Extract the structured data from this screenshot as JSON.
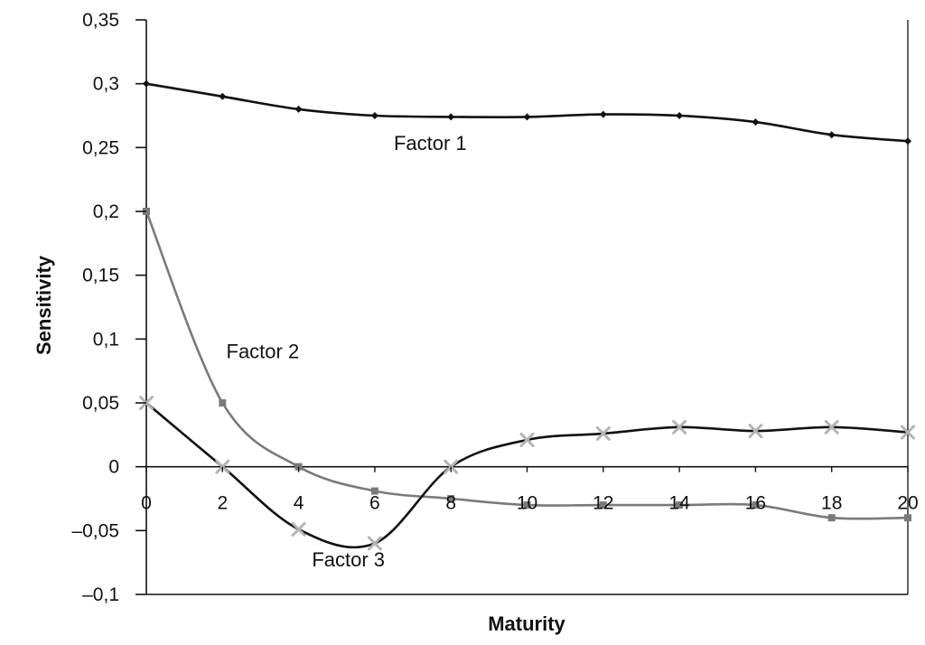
{
  "chart_data": {
    "type": "line",
    "title": "",
    "xlabel": "Maturity",
    "ylabel": "Sensitivity",
    "xlim": [
      0,
      20
    ],
    "ylim": [
      -0.1,
      0.35
    ],
    "x_ticks": [
      0,
      2,
      4,
      6,
      8,
      10,
      12,
      14,
      16,
      18,
      20
    ],
    "x_tick_labels": [
      "0",
      "2",
      "4",
      "6",
      "8",
      "10",
      "12",
      "14",
      "16",
      "18",
      "20"
    ],
    "y_ticks": [
      -0.1,
      -0.05,
      0,
      0.05,
      0.1,
      0.15,
      0.2,
      0.25,
      0.3,
      0.35
    ],
    "y_tick_labels": [
      "–0,1",
      "–0,05",
      "0",
      "0,05",
      "0,1",
      "0,15",
      "0,2",
      "0,25",
      "0,3",
      "0,35"
    ],
    "grid": false,
    "legend": "none",
    "x": [
      0,
      2,
      4,
      6,
      8,
      10,
      12,
      14,
      16,
      18,
      20
    ],
    "series": [
      {
        "name": "Factor 1",
        "marker": "diamond",
        "color": "#111111",
        "values": [
          0.3,
          0.29,
          0.28,
          0.275,
          0.274,
          0.274,
          0.276,
          0.275,
          0.27,
          0.26,
          0.255
        ]
      },
      {
        "name": "Factor 2",
        "marker": "square",
        "color": "#7a7a7a",
        "values": [
          0.2,
          0.05,
          0.0,
          -0.019,
          -0.025,
          -0.03,
          -0.03,
          -0.03,
          -0.03,
          -0.04,
          -0.04
        ]
      },
      {
        "name": "Factor 3",
        "marker": "x",
        "color": "#111111",
        "marker_color": "#b4b4b4",
        "values": [
          0.05,
          0.0,
          -0.049,
          -0.06,
          0.0,
          0.021,
          0.026,
          0.031,
          0.028,
          0.031,
          0.027
        ]
      }
    ],
    "annotations": [
      {
        "text": "Factor 1",
        "x": 6.5,
        "y": 0.248
      },
      {
        "text": "Factor 2",
        "x": 2.1,
        "y": 0.085
      },
      {
        "text": "Factor 3",
        "x": 4.35,
        "y": -0.078
      }
    ]
  }
}
